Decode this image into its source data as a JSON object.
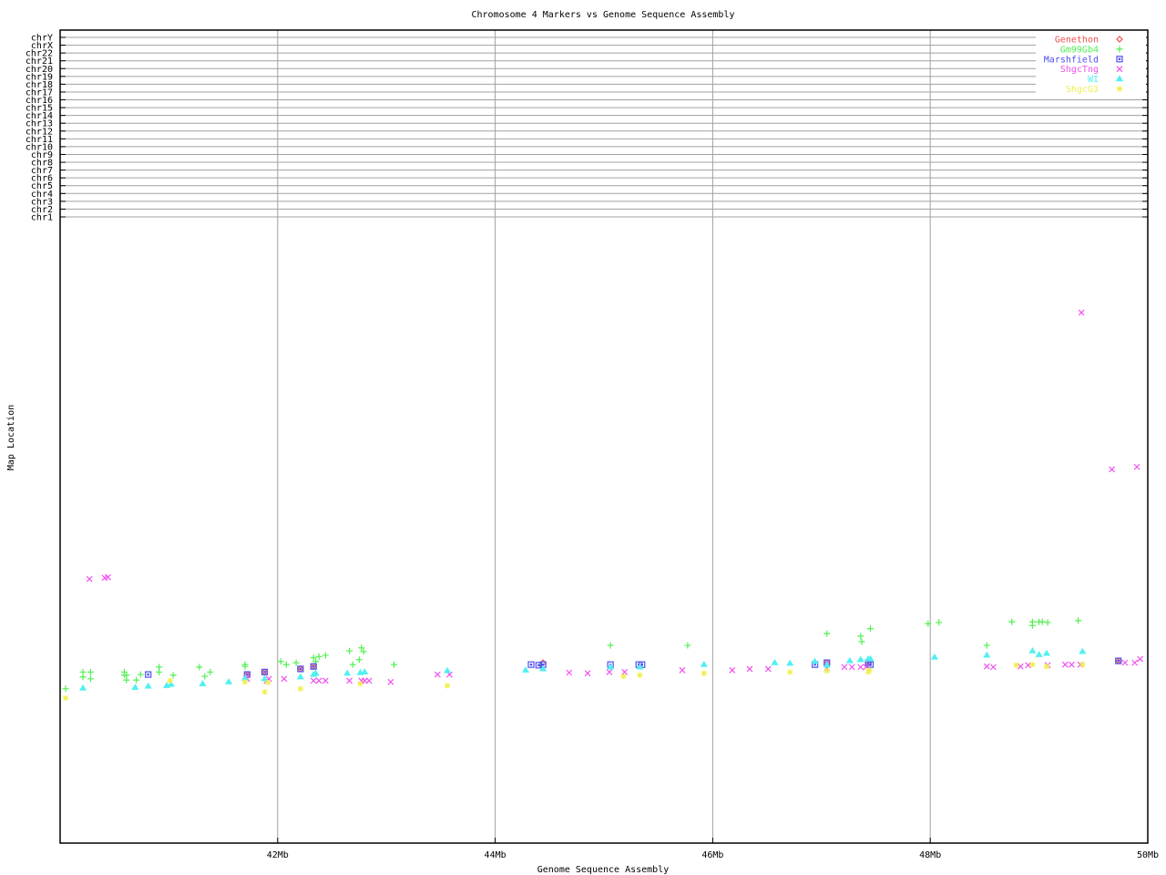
{
  "chart_data": {
    "type": "scatter",
    "title": "Chromosome 4 Markers vs Genome Sequence Assembly",
    "xlabel": "Genome Sequence Assembly",
    "ylabel": "Map Location",
    "xlim": [
      40,
      50
    ],
    "x_ticks": [
      {
        "value": 42,
        "label": "42Mb"
      },
      {
        "value": 44,
        "label": "44Mb"
      },
      {
        "value": 46,
        "label": "46Mb"
      },
      {
        "value": 48,
        "label": "48Mb"
      },
      {
        "value": 50,
        "label": "50Mb"
      }
    ],
    "ylim": [
      0,
      100
    ],
    "y_categories": [
      "chrY",
      "chrX",
      "chr22",
      "chr21",
      "chr20",
      "chr19",
      "chr18",
      "chr17",
      "chr16",
      "chr15",
      "chr14",
      "chr13",
      "chr12",
      "chr11",
      "chr10",
      "chr9",
      "chr8",
      "chr7",
      "chr6",
      "chr5",
      "chr4",
      "chr3",
      "chr2",
      "chr1"
    ],
    "grid": true,
    "legend_position": "top-right",
    "series": [
      {
        "name": "Genethon",
        "color": "#f05050",
        "marker": "diamond",
        "points": [
          [
            41.72,
            27.2
          ],
          [
            41.88,
            27.6
          ],
          [
            42.21,
            28.1
          ],
          [
            42.33,
            28.5
          ],
          [
            44.44,
            29.1
          ],
          [
            47.05,
            29.1
          ],
          [
            47.43,
            29.1
          ],
          [
            49.73,
            29.4
          ]
        ]
      },
      {
        "name": "Gm99Gb4",
        "color": "#50f050",
        "marker": "plus",
        "points": [
          [
            40.05,
            24.9
          ],
          [
            40.21,
            27.6
          ],
          [
            40.21,
            26.8
          ],
          [
            40.28,
            27.6
          ],
          [
            40.28,
            26.5
          ],
          [
            40.59,
            27.6
          ],
          [
            40.59,
            27.1
          ],
          [
            40.61,
            27.1
          ],
          [
            40.61,
            26.3
          ],
          [
            40.7,
            26.3
          ],
          [
            40.74,
            27.2
          ],
          [
            40.91,
            28.4
          ],
          [
            40.91,
            27.6
          ],
          [
            41.04,
            27.1
          ],
          [
            41.28,
            28.4
          ],
          [
            41.33,
            26.9
          ],
          [
            41.38,
            27.6
          ],
          [
            41.7,
            28.8
          ],
          [
            41.7,
            28.5
          ],
          [
            42.03,
            29.3
          ],
          [
            42.08,
            28.8
          ],
          [
            42.17,
            29.1
          ],
          [
            42.33,
            29.9
          ],
          [
            42.35,
            29.3
          ],
          [
            42.38,
            30.1
          ],
          [
            42.44,
            30.3
          ],
          [
            42.66,
            31.0
          ],
          [
            42.77,
            31.5
          ],
          [
            42.79,
            30.9
          ],
          [
            42.75,
            29.6
          ],
          [
            42.69,
            28.8
          ],
          [
            43.07,
            28.8
          ],
          [
            45.06,
            31.9
          ],
          [
            45.77,
            31.9
          ],
          [
            47.05,
            33.8
          ],
          [
            47.36,
            33.4
          ],
          [
            47.37,
            32.5
          ],
          [
            47.45,
            34.6
          ],
          [
            47.98,
            35.4
          ],
          [
            48.08,
            35.6
          ],
          [
            48.52,
            31.9
          ],
          [
            48.75,
            35.7
          ],
          [
            48.94,
            35.7
          ],
          [
            48.94,
            35.1
          ],
          [
            49.0,
            35.7
          ],
          [
            49.03,
            35.7
          ],
          [
            49.08,
            35.6
          ],
          [
            49.36,
            35.9
          ]
        ]
      },
      {
        "name": "Marshfield",
        "color": "#5050f0",
        "marker": "square",
        "points": [
          [
            40.81,
            27.2
          ],
          [
            41.72,
            27.2
          ],
          [
            41.88,
            27.6
          ],
          [
            42.21,
            28.1
          ],
          [
            42.33,
            28.5
          ],
          [
            44.33,
            28.8
          ],
          [
            44.4,
            28.7
          ],
          [
            44.44,
            28.8
          ],
          [
            45.06,
            28.8
          ],
          [
            45.32,
            28.8
          ],
          [
            45.35,
            28.8
          ],
          [
            46.94,
            28.8
          ],
          [
            47.05,
            29.1
          ],
          [
            47.43,
            29.1
          ],
          [
            47.45,
            28.8
          ],
          [
            49.73,
            29.4
          ]
        ]
      },
      {
        "name": "ShgcTng",
        "color": "#f050f0",
        "marker": "x",
        "points": [
          [
            40.27,
            42.6
          ],
          [
            40.41,
            42.8
          ],
          [
            40.44,
            42.9
          ],
          [
            41.71,
            26.6
          ],
          [
            41.72,
            26.5
          ],
          [
            41.9,
            26.2
          ],
          [
            41.92,
            26.5
          ],
          [
            42.06,
            26.5
          ],
          [
            42.33,
            26.2
          ],
          [
            42.38,
            26.2
          ],
          [
            42.44,
            26.2
          ],
          [
            42.66,
            26.2
          ],
          [
            42.77,
            26.2
          ],
          [
            42.8,
            26.2
          ],
          [
            42.84,
            26.2
          ],
          [
            43.04,
            26.0
          ],
          [
            43.47,
            27.2
          ],
          [
            43.58,
            27.2
          ],
          [
            44.68,
            27.5
          ],
          [
            44.85,
            27.4
          ],
          [
            45.05,
            27.6
          ],
          [
            45.19,
            27.6
          ],
          [
            45.72,
            27.9
          ],
          [
            46.18,
            27.9
          ],
          [
            46.34,
            28.1
          ],
          [
            46.51,
            28.1
          ],
          [
            47.05,
            28.2
          ],
          [
            47.21,
            28.4
          ],
          [
            47.28,
            28.4
          ],
          [
            47.36,
            28.4
          ],
          [
            47.41,
            28.4
          ],
          [
            48.52,
            28.5
          ],
          [
            48.58,
            28.4
          ],
          [
            48.83,
            28.5
          ],
          [
            48.9,
            28.7
          ],
          [
            49.08,
            28.7
          ],
          [
            49.24,
            28.8
          ],
          [
            49.3,
            28.8
          ],
          [
            49.38,
            28.8
          ],
          [
            49.79,
            29.1
          ],
          [
            49.88,
            29.1
          ],
          [
            49.93,
            29.7
          ],
          [
            49.39,
            85.6
          ],
          [
            49.67,
            60.3
          ],
          [
            49.9,
            60.7
          ]
        ]
      },
      {
        "name": "WI",
        "color": "#50f0f0",
        "marker": "triangle",
        "points": [
          [
            40.21,
            25.0
          ],
          [
            40.69,
            25.1
          ],
          [
            40.81,
            25.3
          ],
          [
            40.98,
            25.4
          ],
          [
            41.02,
            25.6
          ],
          [
            41.31,
            25.7
          ],
          [
            41.55,
            26.0
          ],
          [
            41.7,
            26.6
          ],
          [
            41.88,
            26.5
          ],
          [
            42.21,
            26.8
          ],
          [
            42.33,
            27.2
          ],
          [
            42.35,
            27.4
          ],
          [
            42.64,
            27.4
          ],
          [
            42.76,
            27.5
          ],
          [
            42.8,
            27.6
          ],
          [
            43.56,
            27.8
          ],
          [
            44.28,
            27.9
          ],
          [
            44.44,
            28.1
          ],
          [
            45.06,
            28.4
          ],
          [
            45.33,
            28.4
          ],
          [
            45.92,
            28.8
          ],
          [
            46.57,
            29.1
          ],
          [
            46.71,
            29.0
          ],
          [
            46.94,
            29.3
          ],
          [
            47.05,
            28.7
          ],
          [
            47.26,
            29.4
          ],
          [
            47.36,
            29.6
          ],
          [
            47.43,
            29.7
          ],
          [
            47.45,
            29.7
          ],
          [
            48.04,
            30.0
          ],
          [
            48.52,
            30.3
          ],
          [
            48.94,
            31.0
          ],
          [
            49.0,
            30.4
          ],
          [
            49.07,
            30.6
          ],
          [
            49.4,
            30.9
          ]
        ]
      },
      {
        "name": "ShgcG3",
        "color": "#f0f050",
        "marker": "asterisk",
        "points": [
          [
            40.05,
            23.4
          ],
          [
            41.01,
            26.2
          ],
          [
            41.7,
            26.0
          ],
          [
            41.91,
            25.9
          ],
          [
            41.88,
            24.4
          ],
          [
            42.21,
            24.9
          ],
          [
            42.76,
            25.7
          ],
          [
            43.56,
            25.4
          ],
          [
            45.18,
            26.9
          ],
          [
            45.33,
            27.1
          ],
          [
            45.92,
            27.4
          ],
          [
            46.71,
            27.6
          ],
          [
            47.05,
            27.8
          ],
          [
            47.44,
            27.9
          ],
          [
            47.43,
            27.6
          ],
          [
            48.79,
            28.7
          ],
          [
            48.94,
            28.8
          ],
          [
            49.07,
            28.5
          ],
          [
            49.4,
            28.8
          ]
        ]
      }
    ]
  }
}
